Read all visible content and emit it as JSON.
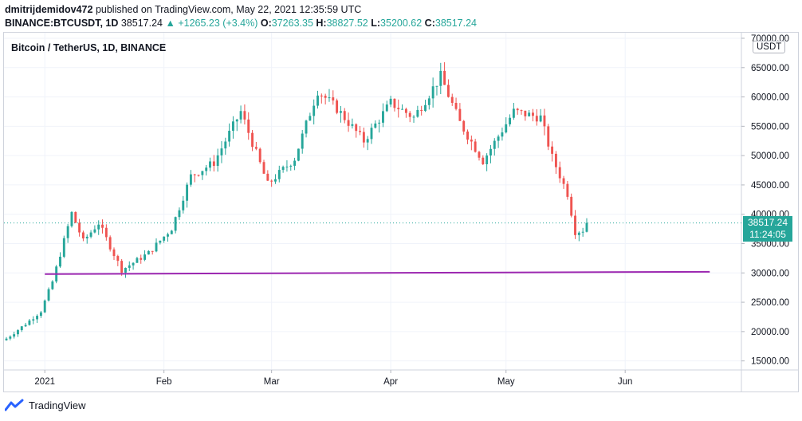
{
  "header": {
    "user": "dmitrijdemidov472",
    "published": "published on TradingView.com, May 22, 2021 12:35:59 UTC",
    "symbol_interval": "BINANCE:BTCUSDT, 1D",
    "last": "38517.24",
    "change": "▲ +1265.23 (+3.4%)",
    "o_label": "O:",
    "o_value": "37263.35",
    "h_label": "H:",
    "h_value": "38827.52",
    "l_label": "L:",
    "l_value": "35200.62",
    "c_label": "C:",
    "c_value": "38517.24"
  },
  "legend": "Bitcoin / TetherUS, 1D, BINANCE",
  "currency_badge": "USDT",
  "price_tag": {
    "price": "38517.24",
    "countdown": "11:24:05"
  },
  "footer": {
    "logo_text": "TradingView",
    "icon": "tradingview-logo-icon"
  },
  "colors": {
    "up": "#26a69a",
    "down": "#ef5350",
    "trendline": "#9c27b0",
    "grid": "#f0f3fa"
  },
  "chart_data": {
    "type": "candlestick",
    "title": "Bitcoin / TetherUS, 1D, BINANCE",
    "x_range": [
      "2020-12-22",
      "2021-06-30"
    ],
    "ylim": [
      14000,
      70000
    ],
    "y_ticks": [
      "70000.00",
      "65000.00",
      "60000.00",
      "55000.00",
      "50000.00",
      "45000.00",
      "40000.00",
      "35000.00",
      "30000.00",
      "25000.00",
      "20000.00",
      "15000.00"
    ],
    "x_ticks": [
      {
        "date": "2021-01-01",
        "label": "2021"
      },
      {
        "date": "2021-02-01",
        "label": "Feb"
      },
      {
        "date": "2021-03-01",
        "label": "Mar"
      },
      {
        "date": "2021-04-01",
        "label": "Apr"
      },
      {
        "date": "2021-05-01",
        "label": "May"
      },
      {
        "date": "2021-06-01",
        "label": "Jun"
      }
    ],
    "closes": [
      {
        "date": "2020-12-22",
        "close": 18800
      },
      {
        "date": "2020-12-27",
        "close": 21300
      },
      {
        "date": "2020-12-31",
        "close": 23500
      },
      {
        "date": "2021-01-03",
        "close": 28500
      },
      {
        "date": "2021-01-08",
        "close": 40200
      },
      {
        "date": "2021-01-11",
        "close": 35400
      },
      {
        "date": "2021-01-15",
        "close": 38500
      },
      {
        "date": "2021-01-21",
        "close": 30500
      },
      {
        "date": "2021-01-28",
        "close": 33400
      },
      {
        "date": "2021-02-03",
        "close": 37600
      },
      {
        "date": "2021-02-08",
        "close": 46500
      },
      {
        "date": "2021-02-14",
        "close": 48800
      },
      {
        "date": "2021-02-21",
        "close": 57500
      },
      {
        "date": "2021-02-28",
        "close": 45100
      },
      {
        "date": "2021-03-07",
        "close": 49500
      },
      {
        "date": "2021-03-13",
        "close": 61100
      },
      {
        "date": "2021-03-18",
        "close": 58000
      },
      {
        "date": "2021-03-25",
        "close": 52500
      },
      {
        "date": "2021-04-01",
        "close": 59000
      },
      {
        "date": "2021-04-07",
        "close": 56500
      },
      {
        "date": "2021-04-14",
        "close": 63500
      },
      {
        "date": "2021-04-19",
        "close": 55600
      },
      {
        "date": "2021-04-25",
        "close": 49100
      },
      {
        "date": "2021-05-03",
        "close": 57500
      },
      {
        "date": "2021-05-10",
        "close": 56500
      },
      {
        "date": "2021-05-13",
        "close": 49700
      },
      {
        "date": "2021-05-17",
        "close": 43500
      },
      {
        "date": "2021-05-19",
        "close": 37000
      },
      {
        "date": "2021-05-21",
        "close": 37300
      },
      {
        "date": "2021-05-22",
        "close": 38517.24
      }
    ],
    "trendline": {
      "from": {
        "date": "2021-01-01",
        "price": 29800
      },
      "to": {
        "date": "2021-06-23",
        "price": 30200
      }
    },
    "last_price": 38517.24
  }
}
